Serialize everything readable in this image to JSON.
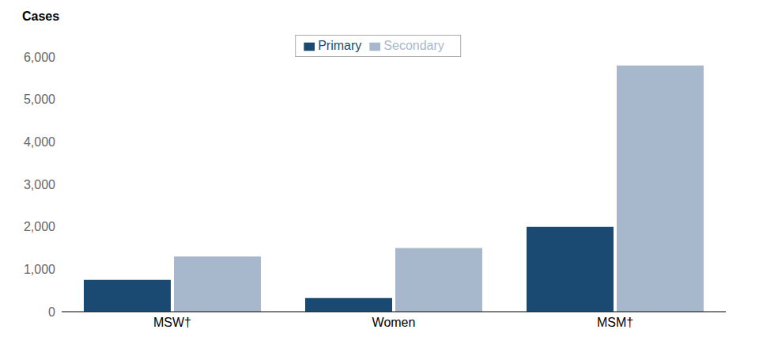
{
  "chart_data": {
    "type": "bar",
    "ylabel": "Cases",
    "categories": [
      "MSW†",
      "Women",
      "MSM†"
    ],
    "series": [
      {
        "name": "Primary",
        "color": "#1a4a72",
        "values": [
          750,
          320,
          2000
        ]
      },
      {
        "name": "Secondary",
        "color": "#a8b8cc",
        "values": [
          1300,
          1500,
          5800
        ]
      }
    ],
    "ylim": [
      0,
      6000
    ],
    "yticks": [
      0,
      {
        "value": 1000,
        "label": "1,000"
      },
      {
        "value": 2000,
        "label": "2,000"
      },
      {
        "value": 3000,
        "label": "3,000"
      },
      {
        "value": 4000,
        "label": "4,000"
      },
      {
        "value": 5000,
        "label": "5,000"
      },
      {
        "value": 6000,
        "label": "6,000"
      }
    ],
    "grid": false,
    "legend": "top"
  }
}
